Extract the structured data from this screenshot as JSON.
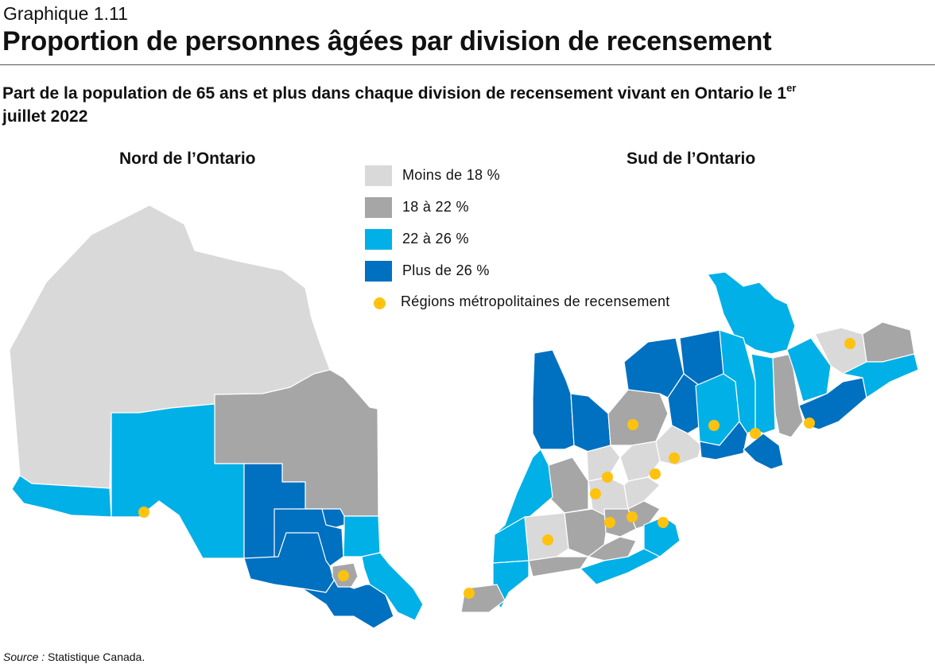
{
  "header": {
    "graph_number": "Graphique 1.11",
    "title": "Proportion de personnes âgées par division de recensement",
    "subtitle_part1": "Part de la population de 65 ans et plus dans chaque division de recensement vivant en Ontario le 1",
    "subtitle_sup": "er",
    "subtitle_part2": " juillet 2022"
  },
  "regions": {
    "north_title": "Nord de l’Ontario",
    "south_title": "Sud de l’Ontario"
  },
  "legend": [
    {
      "label": "Moins de 18 %",
      "color": "#d9d9d9",
      "kind": "swatch"
    },
    {
      "label": "18 à 22 %",
      "color": "#a6a6a6",
      "kind": "swatch"
    },
    {
      "label": "22 à 26 %",
      "color": "#00b0e6",
      "kind": "swatch"
    },
    {
      "label": "Plus de  26 %",
      "color": "#0070c0",
      "kind": "swatch"
    },
    {
      "label": "Régions métropolitaines  de recensement",
      "color": "#ffc20e",
      "kind": "dot"
    }
  ],
  "source": {
    "label": "Source :",
    "text": " Statistique Canada."
  }
}
